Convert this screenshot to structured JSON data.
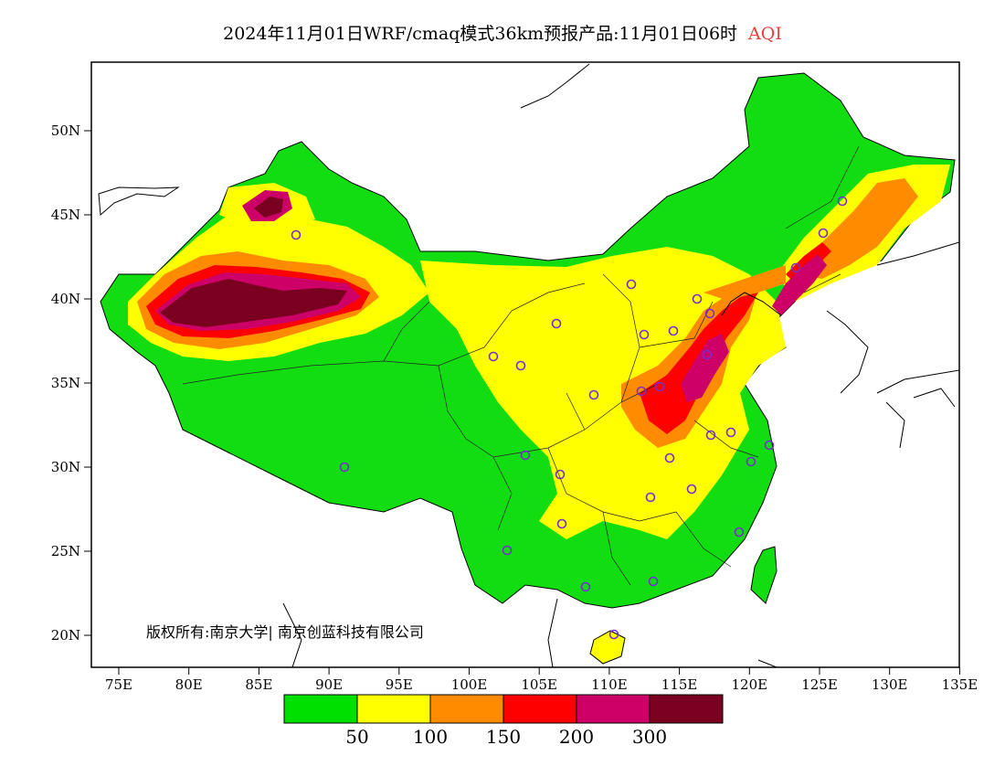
{
  "title": {
    "main": "2024年11月01日WRF/cmaq模式36km预报产品:11月01日06时",
    "variable": "AQI"
  },
  "copyright": "版权所有:南京大学| 南京创蓝科技有限公司",
  "axes": {
    "lat_labels": [
      "50N",
      "45N",
      "40N",
      "35N",
      "30N",
      "25N",
      "20N"
    ],
    "lon_labels": [
      "75E",
      "80E",
      "85E",
      "90E",
      "95E",
      "100E",
      "105E",
      "110E",
      "115E",
      "120E",
      "125E",
      "130E",
      "135E"
    ]
  },
  "legend": {
    "colors": [
      "#00e000",
      "#ffff00",
      "#ff8c00",
      "#ff0000",
      "#cc0066",
      "#7a0020"
    ],
    "labels": [
      "50",
      "100",
      "150",
      "200",
      "300"
    ]
  },
  "colors": {
    "green": "#11dd11",
    "yellow": "#ffff00",
    "orange": "#ff8c00",
    "red": "#ff0000",
    "magenta": "#cc0066",
    "maroon": "#7a0020",
    "station_marker": "#7a2cd0"
  }
}
